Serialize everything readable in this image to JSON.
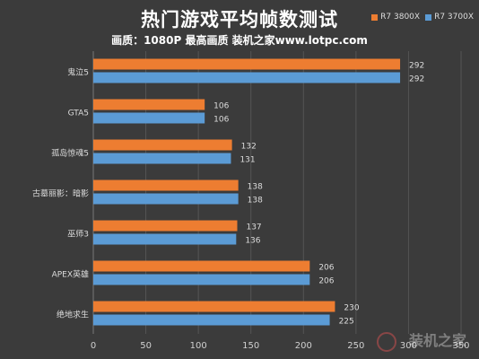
{
  "chart_data": {
    "type": "bar",
    "orientation": "horizontal",
    "title": "热门游戏平均帧数测试",
    "subtitle": "画质：1080P 最高画质 装机之家www.lotpc.com",
    "categories": [
      "鬼泣5",
      "GTA5",
      "孤岛惊魂5",
      "古墓丽影：暗影",
      "巫师3",
      "APEX英雄",
      "绝地求生"
    ],
    "series": [
      {
        "name": "R7 3800X",
        "color": "#ed7d31",
        "values": [
          292,
          106,
          132,
          138,
          137,
          206,
          230
        ]
      },
      {
        "name": "R7 3700X",
        "color": "#5b9bd5",
        "values": [
          292,
          106,
          131,
          138,
          136,
          206,
          225
        ]
      }
    ],
    "xlim": [
      0,
      350
    ],
    "xticks": [
      0,
      50,
      100,
      150,
      200,
      250,
      300,
      350
    ],
    "grid": true,
    "legend_position": "top-right"
  },
  "watermark": "装机之家"
}
